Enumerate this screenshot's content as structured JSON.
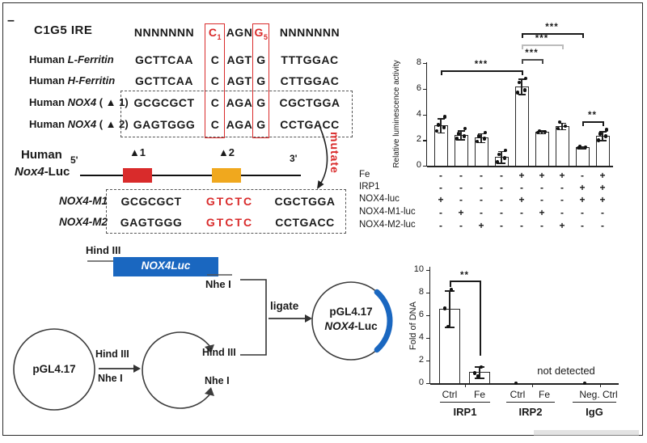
{
  "colors": {
    "red": "#d92b2b",
    "orange": "#f0a81e",
    "blue": "#1a67c0",
    "ink": "#1a1a1a",
    "gray_bracket": "#bcbcbc"
  },
  "panel_ire": {
    "corner_dash": "–",
    "title": "C1G5 IRE",
    "consensus": {
      "left": "NNNNNNN",
      "c": "C",
      "c_sub": "1",
      "mid": "AGN",
      "g": "G",
      "g_sub": "5",
      "right": "NNNNNNN"
    },
    "alignment_rows": [
      {
        "prefix": "Human",
        "gene": "L-Ferritin",
        "suffix": "",
        "seq": [
          "GCTTCAA",
          "C",
          "AGT",
          "G",
          "TTTGGAC"
        ]
      },
      {
        "prefix": "Human",
        "gene": "H-Ferritin",
        "suffix": "",
        "seq": [
          "GCTTCAA",
          "C",
          "AGT",
          "G",
          "CTTGGAC"
        ]
      },
      {
        "prefix": "Human",
        "gene": "NOX4",
        "suffix": "( ▲ 1)",
        "seq": [
          "GCGCGCT",
          "C",
          "AGA",
          "G",
          "CGCTGGA"
        ]
      },
      {
        "prefix": "Human",
        "gene": "NOX4",
        "suffix": "( ▲ 2)",
        "seq": [
          "GAGTGGG",
          "C",
          "AGA",
          "G",
          "CCTGACC"
        ]
      }
    ],
    "construct": {
      "label_top": "Human",
      "label_bottom_italic": "Nox4",
      "label_bottom_rest": "-Luc",
      "five_prime": "5'",
      "three_prime": "3'",
      "site1": "▲1",
      "site2": "▲2",
      "mutate_label": "mutate"
    },
    "mutant_rows": [
      {
        "label": "NOX4-M1",
        "seq_left": "GCGCGCT",
        "seq_mut": "GTCTC",
        "seq_right": "CGCTGGA"
      },
      {
        "label": "NOX4-M2",
        "seq_left": "GAGTGGG",
        "seq_mut": "GTCTC",
        "seq_right": "CCTGACC"
      }
    ]
  },
  "cloning": {
    "hind3_insert": "Hind III",
    "nhe1_insert": "Nhe I",
    "insert_label": "NOX4Luc",
    "vector_label": "pGL4.17",
    "digest_hind3": "Hind III",
    "digest_nhe1": "Nhe I",
    "cut_hind3": "Hind III",
    "cut_nhe1": "Nhe I",
    "ligate_label": "ligate",
    "product_line1": "pGL4.17",
    "product_line2_italic": "NOX4",
    "product_line2_rest": "-Luc"
  },
  "chart_data": [
    {
      "id": "luciferase_reporter",
      "type": "bar",
      "title": "",
      "ylabel": "Relative luminescence activity",
      "ylim": [
        0,
        8
      ],
      "yticks": [
        0,
        2,
        4,
        6,
        8
      ],
      "values": [
        3.15,
        2.4,
        2.2,
        0.7,
        6.2,
        2.65,
        3.1,
        1.45,
        2.35
      ],
      "errors": [
        0.55,
        0.35,
        0.35,
        0.45,
        0.6,
        0.1,
        0.25,
        0.08,
        0.35
      ],
      "points": [
        [
          2.7,
          3.0,
          3.2,
          3.8
        ],
        [
          2.1,
          2.3,
          2.5,
          2.9
        ],
        [
          1.9,
          2.1,
          2.3,
          2.6
        ],
        [
          0.3,
          0.6,
          0.9,
          1.2
        ],
        [
          5.7,
          5.9,
          6.5,
          6.8
        ],
        [
          2.6,
          2.65,
          2.7
        ],
        [
          2.9,
          3.1,
          3.4
        ],
        [
          1.4,
          1.45,
          1.5
        ],
        [
          2.0,
          2.3,
          2.5,
          2.8
        ]
      ],
      "significance": [
        {
          "label": "***",
          "from": 0,
          "to": 4,
          "y_units": 7.43,
          "line_color": "#1a1a1a"
        },
        {
          "label": "***",
          "from": 4,
          "to": 5,
          "y_units": 8.3,
          "line_color": "#4a4a4a"
        },
        {
          "label": "***",
          "from": 4,
          "to": 6,
          "y_units": 9.45,
          "line_color": "#bcbcbc"
        },
        {
          "label": "***",
          "from": 4,
          "to": 7,
          "y_units": 10.33,
          "line_color": "#1a1a1a"
        },
        {
          "label": "**",
          "from": 7,
          "to": 8,
          "y_units": 3.46,
          "line_color": "#1a1a1a"
        }
      ],
      "condition_table": {
        "rows": [
          {
            "label": "Fe",
            "values": [
              "-",
              "-",
              "-",
              "-",
              "+",
              "+",
              "+",
              "-",
              "+"
            ]
          },
          {
            "label": "IRP1",
            "values": [
              "-",
              "-",
              "-",
              "-",
              "-",
              "-",
              "-",
              "+",
              "+"
            ]
          },
          {
            "label": "NOX4-luc",
            "values": [
              "+",
              "-",
              "-",
              "-",
              "+",
              "-",
              "-",
              "+",
              "+"
            ]
          },
          {
            "label": "NOX4-M1-luc",
            "values": [
              "-",
              "+",
              "-",
              "-",
              "-",
              "+",
              "-",
              "-",
              "-"
            ]
          },
          {
            "label": "NOX4-M2-luc",
            "values": [
              "-",
              "-",
              "+",
              "-",
              "-",
              "-",
              "+",
              "-",
              "-"
            ]
          }
        ]
      },
      "legend_position": "none",
      "grid": false
    },
    {
      "id": "chip_fold_dna",
      "type": "bar",
      "title": "",
      "ylabel": "Fold of DNA",
      "ylim": [
        0,
        10
      ],
      "yticks": [
        0,
        2,
        4,
        6,
        8,
        10
      ],
      "categories": [
        "Ctrl",
        "Fe",
        "Ctrl",
        "Fe",
        "Neg. Ctrl"
      ],
      "groups": [
        {
          "label": "IRP1",
          "members": [
            0,
            1
          ]
        },
        {
          "label": "IRP2",
          "members": [
            2,
            3
          ]
        },
        {
          "label": "IgG",
          "members": [
            4
          ]
        }
      ],
      "values": [
        6.6,
        1.0,
        null,
        null,
        null
      ],
      "errors": [
        1.6,
        0.5,
        null,
        null,
        null
      ],
      "points": [
        [
          5.0,
          6.6,
          8.25
        ],
        [
          0.6,
          0.9,
          1.45
        ],
        [
          0
        ],
        [],
        [
          0
        ]
      ],
      "annotation": "not detected",
      "significance": [
        {
          "label": "**",
          "from": 0,
          "to": 1,
          "y_units": 9.05,
          "line_color": "#1a1a1a"
        }
      ],
      "legend_position": "none",
      "grid": false
    }
  ]
}
